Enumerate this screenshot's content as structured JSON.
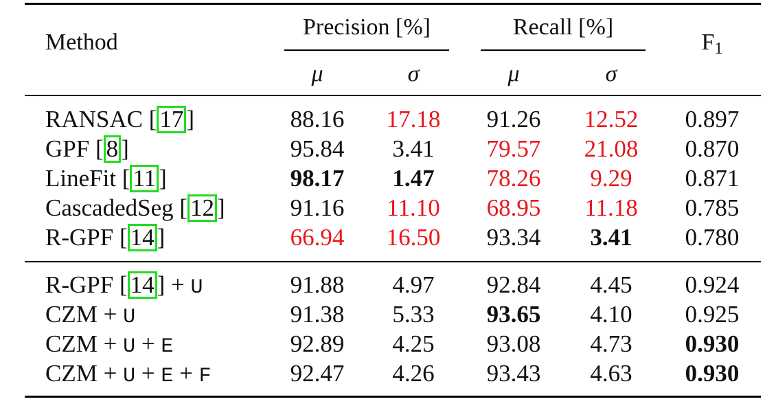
{
  "header": {
    "method": "Method",
    "precision": "Precision [%]",
    "recall": "Recall [%]",
    "f1_base": "F",
    "f1_sub": "1",
    "mu": "μ",
    "sigma": "σ"
  },
  "colors": {
    "worst": "#e8151b",
    "citation_box": "#22dd22"
  },
  "rows": [
    {
      "name": "RANSAC [",
      "cite": "17",
      "suffix": "]",
      "pm": "88.16",
      "ps": "17.18",
      "rm": "91.26",
      "rs": "12.52",
      "f1": "0.897"
    },
    {
      "name": "GPF [",
      "cite": "8",
      "suffix": "]",
      "pm": "95.84",
      "ps": "3.41",
      "rm": "79.57",
      "rs": "21.08",
      "f1": "0.870"
    },
    {
      "name": "LineFit [",
      "cite": "11",
      "suffix": "]",
      "pm": "98.17",
      "ps": "1.47",
      "rm": "78.26",
      "rs": "9.29",
      "f1": "0.871"
    },
    {
      "name": "CascadedSeg [",
      "cite": "12",
      "suffix": "]",
      "pm": "91.16",
      "ps": "11.10",
      "rm": "68.95",
      "rs": "11.18",
      "f1": "0.785"
    },
    {
      "name": "R-GPF [",
      "cite": "14",
      "suffix": "]",
      "pm": "66.94",
      "ps": "16.50",
      "rm": "93.34",
      "rs": "3.41",
      "f1": "0.780"
    },
    {
      "name": "R-GPF [",
      "cite": "14",
      "suffix": "] + ",
      "mono": "U",
      "pm": "91.88",
      "ps": "4.97",
      "rm": "92.84",
      "rs": "4.45",
      "f1": "0.924"
    },
    {
      "name": "CZM + ",
      "mono": "U",
      "pm": "91.38",
      "ps": "5.33",
      "rm": "93.65",
      "rs": "4.10",
      "f1": "0.925"
    },
    {
      "name": "CZM + ",
      "mono": "U",
      "mid1": " + ",
      "mono2": "E",
      "pm": "92.89",
      "ps": "4.25",
      "rm": "93.08",
      "rs": "4.73",
      "f1": "0.930"
    },
    {
      "name": "CZM + ",
      "mono": "U",
      "mid1": " + ",
      "mono2": "E",
      "mid2": " + ",
      "mono3": "F",
      "pm": "92.47",
      "ps": "4.26",
      "rm": "93.43",
      "rs": "4.63",
      "f1": "0.930"
    }
  ]
}
